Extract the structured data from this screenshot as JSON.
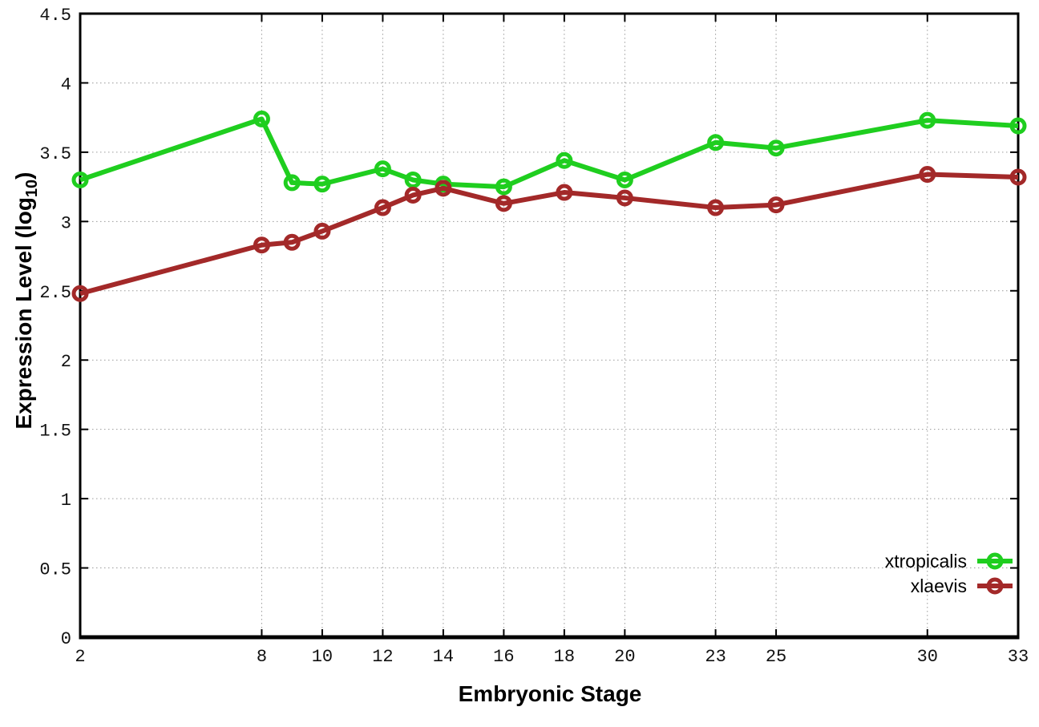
{
  "figure": {
    "background": "#ffffff",
    "border_color": "#000000",
    "grid_color": "#9a9a9a"
  },
  "chart_data": {
    "type": "line",
    "title": "",
    "xlabel": "Embryonic Stage",
    "ylabel": "Expression Level (log10)",
    "ylabel_parts": {
      "main": "Expression Level (log",
      "sub": "10",
      "end": ")"
    },
    "x": [
      2,
      8,
      9,
      10,
      12,
      13,
      14,
      16,
      18,
      20,
      23,
      25,
      30,
      33
    ],
    "x_ticks": [
      2,
      8,
      10,
      12,
      14,
      16,
      18,
      20,
      23,
      25,
      30,
      33
    ],
    "y_ticks": [
      0,
      0.5,
      1,
      1.5,
      2,
      2.5,
      3,
      3.5,
      4,
      4.5
    ],
    "xlim": [
      2,
      33
    ],
    "ylim": [
      0,
      4.5
    ],
    "grid": true,
    "legend_position": "inside-bottom-right",
    "series": [
      {
        "name": "xtropicalis",
        "color": "#1fce1f",
        "marker": "open-circle",
        "values": [
          3.3,
          3.74,
          3.28,
          3.27,
          3.38,
          3.3,
          3.27,
          3.25,
          3.44,
          3.3,
          3.57,
          3.53,
          3.73,
          3.69
        ]
      },
      {
        "name": "xlaevis",
        "color": "#a32929",
        "marker": "open-circle",
        "values": [
          2.48,
          2.83,
          2.85,
          2.93,
          3.1,
          3.19,
          3.24,
          3.13,
          3.21,
          3.17,
          3.1,
          3.12,
          3.34,
          3.32
        ]
      }
    ]
  }
}
